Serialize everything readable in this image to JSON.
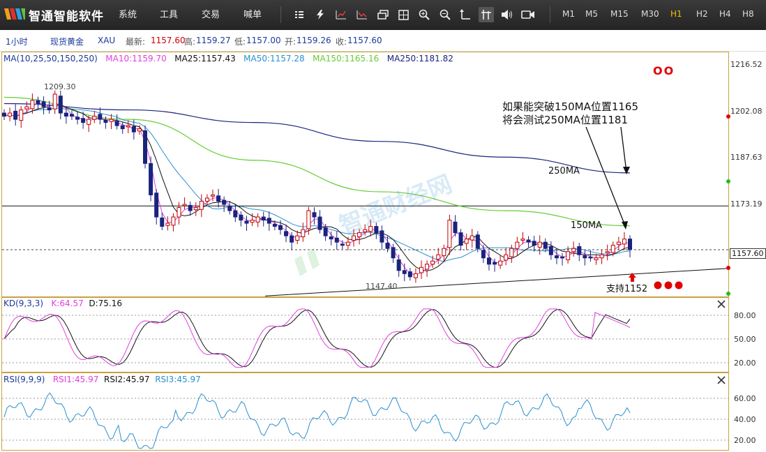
{
  "app": {
    "name": "智通智能软件"
  },
  "menu": [
    "系统",
    "工具",
    "交易",
    "喊单"
  ],
  "toolbar_icons": [
    "list-icon",
    "lightning-icon",
    "chart-up-icon",
    "chart-line-icon",
    "window-icon",
    "grid-icon",
    "zoom-in-icon",
    "zoom-out-icon",
    "cursor-line-icon",
    "crosshair-icon",
    "volume-icon",
    "video-icon"
  ],
  "timeframes": [
    "M1",
    "M5",
    "M15",
    "M30",
    "H1",
    "H2",
    "H4",
    "H8"
  ],
  "active_timeframe": "H1",
  "info": {
    "period": "1小时",
    "symbol_name": "现货黄金",
    "symbol": "XAU",
    "latest_label": "最新:",
    "latest": "1157.60",
    "high_label": "高:",
    "high": "1159.27",
    "low_label": "低:",
    "low": "1157.00",
    "open_label": "开:",
    "open": "1159.26",
    "close_label": "收:",
    "close": "1157.60"
  },
  "ma_legend": {
    "title": "MA(10,25,50,150,250)",
    "ma10": "MA10:1159.70",
    "ma25": "MA25:1157.43",
    "ma50": "MA50:1157.28",
    "ma150": "MA150:1165.16",
    "ma250": "MA250:1181.82"
  },
  "kd_legend": {
    "title": "KD(9,3,3)",
    "k": "K:64.57",
    "d": "D:75.16"
  },
  "rsi_legend": {
    "title": "RSI(9,9,9)",
    "rsi1": "RSI1:45.97",
    "rsi2": "RSI2:45.97",
    "rsi3": "RSI3:45.97"
  },
  "annotations": {
    "note_line1": "如果能突破150MA位置1165",
    "note_line2": "将会测试250MA位置1181",
    "ma250_label": "250MA",
    "ma150_label": "150MA",
    "support_label": "支持1152",
    "high_label": "1209.30",
    "low_label": "1147.40",
    "oo": "OO"
  },
  "watermark": "智通财经网",
  "colors": {
    "ma10": "#e040e0",
    "ma25": "#111111",
    "ma50": "#2a8fd0",
    "ma150": "#66cc33",
    "ma250": "#1a237e",
    "up": "#c00000",
    "down": "#1a237e",
    "kd_k": "#e040e0",
    "kd_d": "#111111",
    "rsi": "#2a8fd0"
  },
  "chart_data": [
    {
      "type": "candlestick",
      "title": "现货黄金 XAU 1小时",
      "y_ticks": [
        1216.52,
        1202.08,
        1187.63,
        1173.19,
        1157.6
      ],
      "ylim": [
        1143.5,
        1222
      ],
      "current_price": 1157.6,
      "horizontal_line": 1171.5,
      "support_line": {
        "from": 1146.0,
        "to": 1153.0,
        "label": "支持1152"
      },
      "extremes": {
        "high": 1209.3,
        "low": 1147.4
      },
      "close_path": [
        1200,
        1201,
        1199,
        1202,
        1203,
        1205,
        1204,
        1203,
        1202,
        1207,
        1201,
        1200,
        1200,
        1199,
        1198,
        1199,
        1200,
        1199,
        1198,
        1199,
        1197,
        1196,
        1197,
        1195,
        1196,
        1185,
        1175,
        1168,
        1165,
        1166,
        1168,
        1171,
        1172,
        1170,
        1171,
        1173,
        1174,
        1175,
        1173,
        1172,
        1170,
        1168,
        1167,
        1166,
        1167,
        1168,
        1167,
        1166,
        1165,
        1164,
        1162,
        1160,
        1162,
        1164,
        1170,
        1168,
        1164,
        1162,
        1161,
        1160,
        1159,
        1160,
        1162,
        1163,
        1164,
        1165,
        1163,
        1160,
        1158,
        1155,
        1151,
        1150,
        1149,
        1150,
        1152,
        1153,
        1154,
        1156,
        1158,
        1167,
        1163,
        1159,
        1161,
        1162,
        1158,
        1155,
        1153,
        1153,
        1154,
        1156,
        1158,
        1160,
        1161,
        1160,
        1159,
        1160,
        1158,
        1156,
        1155,
        1155,
        1157,
        1158,
        1156,
        1155,
        1155,
        1155,
        1156,
        1157,
        1159,
        1160,
        1161,
        1157.6
      ],
      "ma150": [
        1206,
        1199,
        1186,
        1176,
        1170,
        1165.2
      ],
      "ma250": [
        1204,
        1202,
        1198,
        1192,
        1187,
        1182
      ]
    },
    {
      "type": "line",
      "title": "KD(9,3,3)",
      "y_ticks": [
        80.0,
        50.0,
        20.0
      ],
      "ylim": [
        10,
        92
      ],
      "series": [
        {
          "name": "K",
          "last": 64.57
        },
        {
          "name": "D",
          "last": 75.16
        }
      ]
    },
    {
      "type": "line",
      "title": "RSI(9,9,9)",
      "y_ticks": [
        60.0,
        40.0,
        20.0
      ],
      "ylim": [
        10,
        75
      ],
      "series": [
        {
          "name": "RSI1",
          "last": 45.97
        },
        {
          "name": "RSI2",
          "last": 45.97
        },
        {
          "name": "RSI3",
          "last": 45.97
        }
      ]
    }
  ]
}
